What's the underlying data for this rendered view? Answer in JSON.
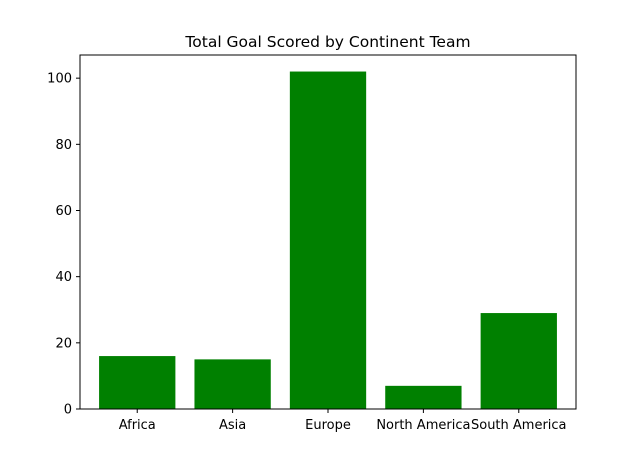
{
  "chart_data": {
    "type": "bar",
    "title": "Total Goal Scored by Continent Team",
    "xlabel": "",
    "ylabel": "",
    "categories": [
      "Africa",
      "Asia",
      "Europe",
      "North America",
      "South America"
    ],
    "values": [
      16,
      15,
      102,
      7,
      29
    ],
    "ylim": [
      0,
      107
    ],
    "yticks": [
      0,
      20,
      40,
      60,
      80,
      100
    ],
    "bar_color": "#008000",
    "grid": false,
    "legend": "none"
  }
}
